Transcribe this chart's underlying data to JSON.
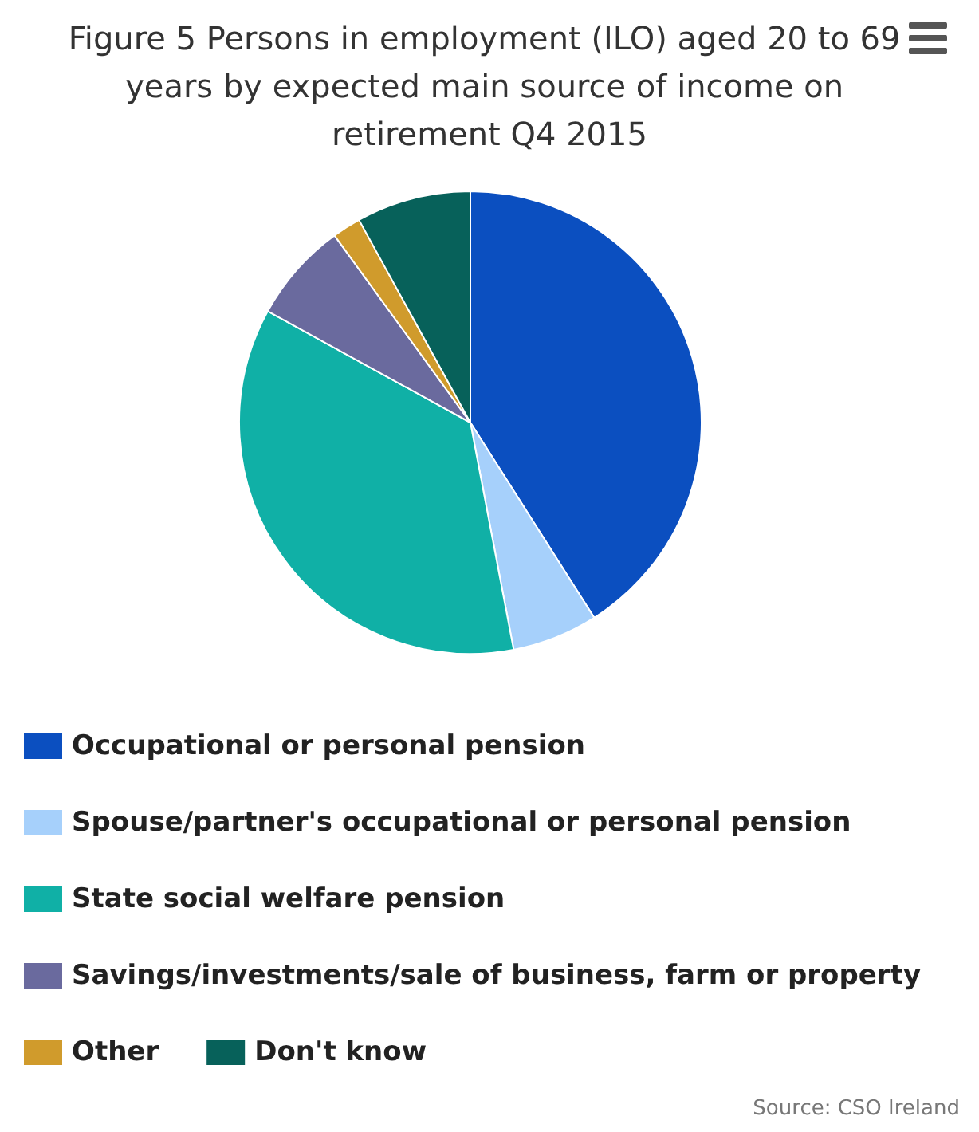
{
  "chart_data": {
    "type": "pie",
    "title": "Figure 5 Persons in employment (ILO) aged 20 to 69 years by expected main source of income on retirement Q4 2015",
    "categories": [
      "Occupational or personal pension",
      "Spouse/partner's occupational or personal pension",
      "State social welfare pension",
      "Savings/investments/sale of business, farm or property",
      "Other",
      "Don't know"
    ],
    "values": [
      41,
      6,
      36,
      7,
      2,
      8
    ],
    "colors": [
      "#0b4fc0",
      "#a6d0fb",
      "#10b0a6",
      "#6a6a9e",
      "#d09b2c",
      "#07615a"
    ],
    "legend": "bottom left",
    "annotations": [
      "Source: CSO Ireland"
    ]
  }
}
